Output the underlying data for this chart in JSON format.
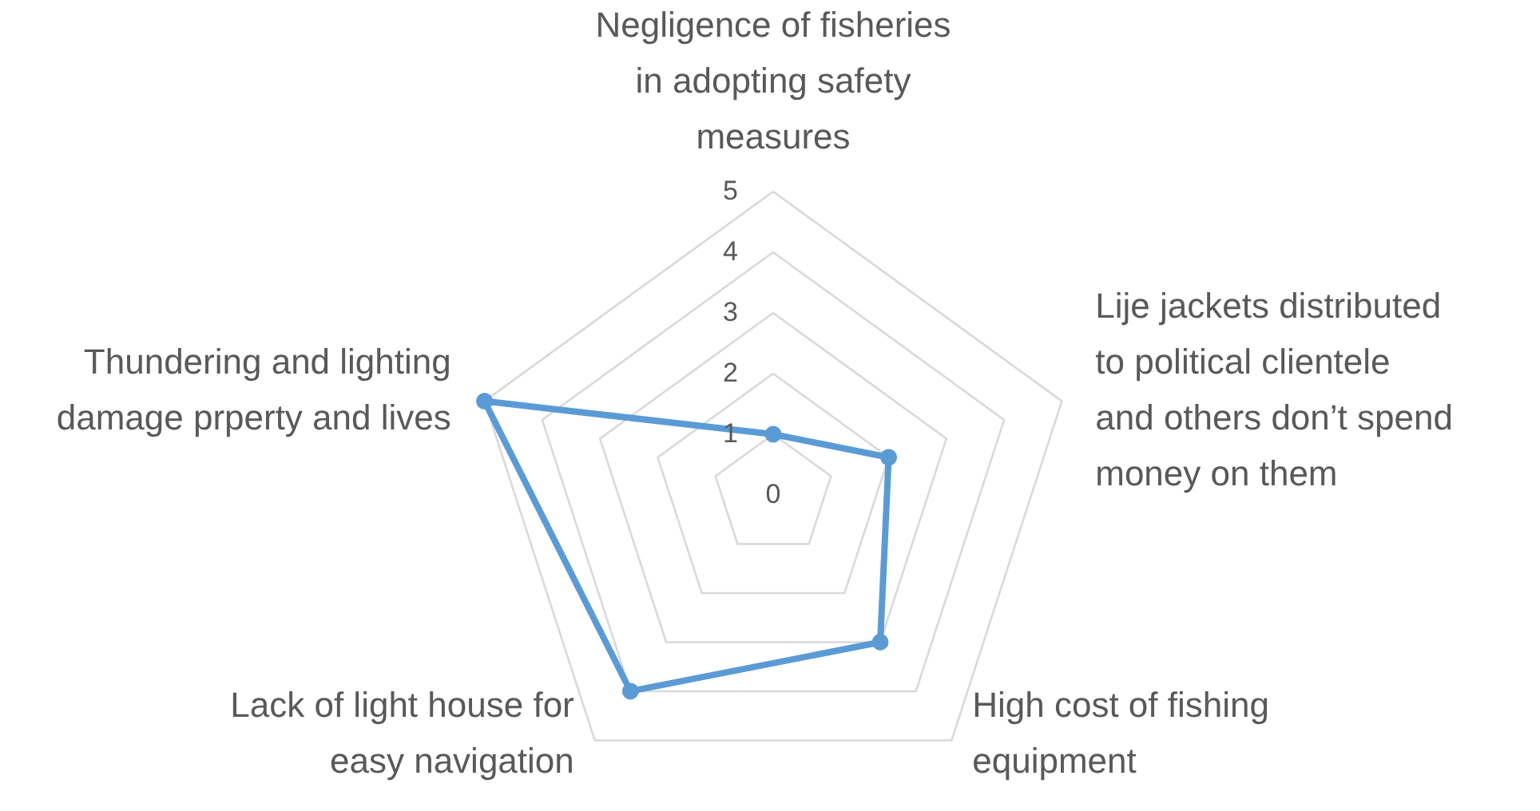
{
  "chart_data": {
    "type": "radar",
    "categories": [
      "Negligence of fisheries in adopting safety measures",
      "Lije jackets distributed to political clientele and others don’t spend money on them",
      "High cost of fishing equipment",
      "Lack of light house for easy navigation",
      "Thundering and lighting damage prperty and lives"
    ],
    "series": [
      {
        "color": "#5b9bd5",
        "values": [
          1,
          2,
          3,
          4,
          5
        ]
      }
    ],
    "ylim": [
      0,
      5
    ],
    "yticks": [
      0,
      1,
      2,
      3,
      4,
      5
    ],
    "grid": true,
    "marker": "circle",
    "line_style": "solid"
  }
}
